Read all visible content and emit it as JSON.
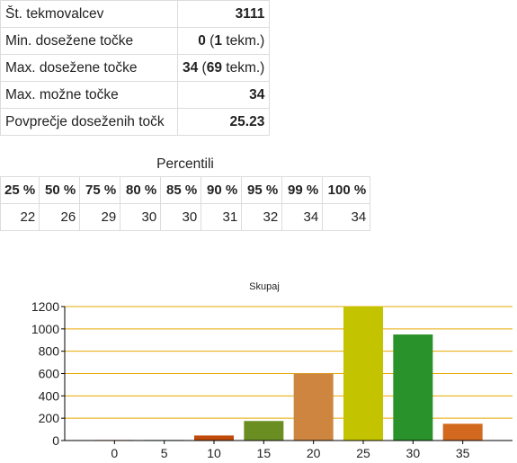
{
  "stats": [
    {
      "label": "Št. tekmovalcev",
      "value_bold": "3111",
      "value_rest": ""
    },
    {
      "label": "Min. dosežene točke",
      "value_bold": "0",
      "value_mid": " (",
      "value_bold2": "1",
      "value_rest": " tekm.)"
    },
    {
      "label": "Max. dosežene točke",
      "value_bold": "34",
      "value_mid": " (",
      "value_bold2": "69",
      "value_rest": " tekm.)"
    },
    {
      "label": "Max. možne točke",
      "value_bold": "34",
      "value_rest": ""
    },
    {
      "label": "Povprečje doseženih točk",
      "value_bold": "25.23",
      "value_rest": ""
    }
  ],
  "percentiles": {
    "title": "Percentili",
    "headers": [
      "25 %",
      "50 %",
      "75 %",
      "80 %",
      "85 %",
      "90 %",
      "95 %",
      "99 %",
      "100 %"
    ],
    "values": [
      "22",
      "26",
      "29",
      "30",
      "30",
      "31",
      "32",
      "34",
      "34"
    ]
  },
  "chart_data": {
    "type": "bar",
    "title": "Skupaj",
    "xlabel": "",
    "ylabel": "",
    "x": [
      0,
      5,
      10,
      15,
      20,
      25,
      30,
      35
    ],
    "xlim": [
      -5,
      40
    ],
    "ylim": [
      0,
      1200
    ],
    "yticks": [
      0,
      200,
      400,
      600,
      800,
      1000,
      1200
    ],
    "grid": true,
    "values": [
      5,
      5,
      45,
      175,
      600,
      1200,
      950,
      150
    ],
    "colors": [
      "#d2691e",
      "#2e8b57",
      "#c04a0a",
      "#6b8e23",
      "#cd853f",
      "#c3c300",
      "#2a922a",
      "#d2691e"
    ],
    "gridline_color": "#e6a800"
  }
}
